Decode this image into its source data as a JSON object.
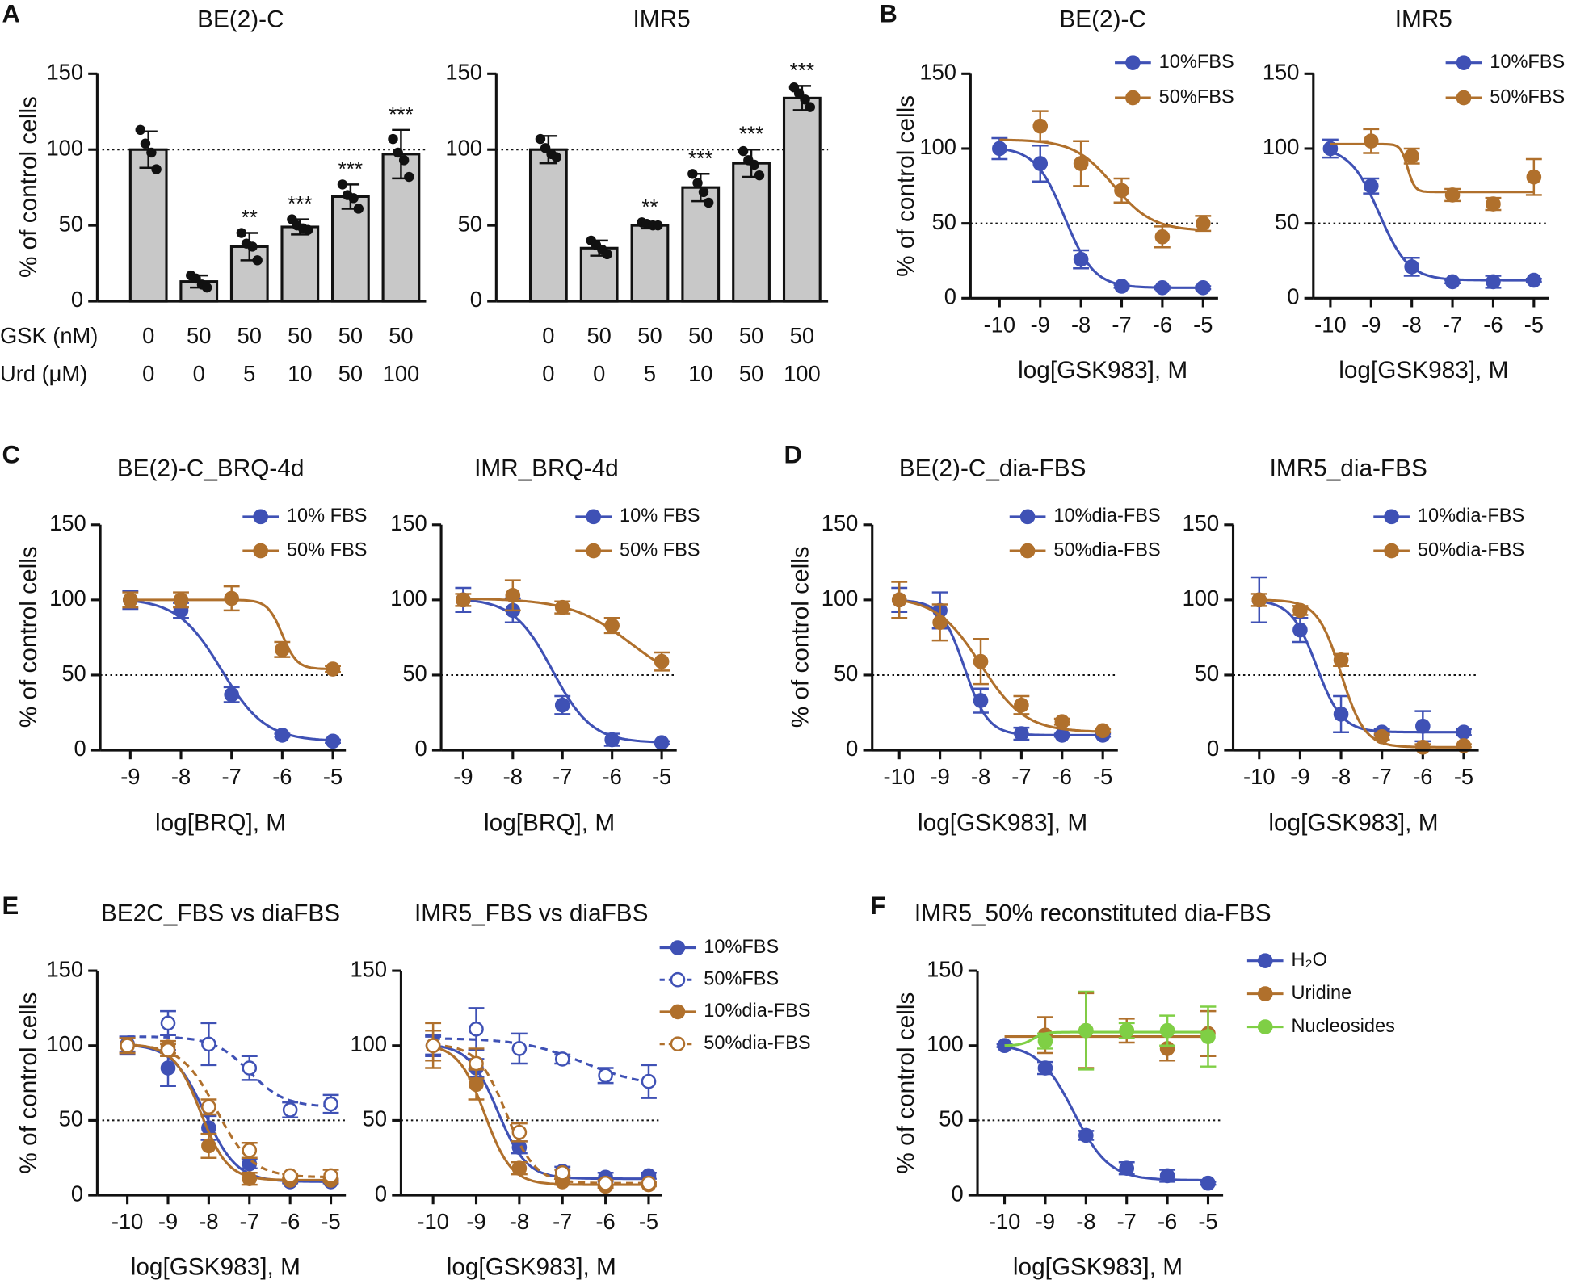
{
  "chart_data": [
    {
      "type": "bar",
      "panel": "A",
      "title": "BE(2)-C",
      "ylabel": "% of control cells",
      "ylim": [
        0,
        150
      ],
      "yticks": [
        0,
        50,
        100,
        150
      ],
      "hline": 100,
      "category_rows": [
        {
          "label": "GSK (nM)",
          "labels": [
            "0",
            "50",
            "50",
            "50",
            "50",
            "50"
          ]
        },
        {
          "label": "Urd (μM)",
          "labels": [
            "0",
            "0",
            "5",
            "10",
            "50",
            "100"
          ]
        }
      ],
      "values": [
        100,
        13,
        36,
        49,
        69,
        97
      ],
      "errors": [
        12,
        4,
        9,
        5,
        8,
        16
      ],
      "points": [
        [
          113,
          104,
          98,
          87
        ],
        [
          17,
          15,
          11,
          9
        ],
        [
          45,
          38,
          36,
          27
        ],
        [
          54,
          50,
          48,
          47
        ],
        [
          77,
          70,
          68,
          61
        ],
        [
          107,
          98,
          93,
          82
        ]
      ],
      "annotations": [
        null,
        null,
        "**",
        "***",
        "***",
        "***"
      ],
      "color": "#c8c8c8"
    },
    {
      "type": "bar",
      "title": "IMR5",
      "ylim": [
        0,
        150
      ],
      "yticks": [
        0,
        50,
        100,
        150
      ],
      "hline": 100,
      "category_rows": [
        {
          "labels": [
            "0",
            "50",
            "50",
            "50",
            "50",
            "50"
          ]
        },
        {
          "labels": [
            "0",
            "0",
            "5",
            "10",
            "50",
            "100"
          ]
        }
      ],
      "values": [
        100,
        35,
        50,
        75,
        91,
        134
      ],
      "errors": [
        9,
        5,
        2,
        9,
        9,
        8
      ],
      "points": [
        [
          107,
          101,
          97,
          95
        ],
        [
          40,
          37,
          34,
          31
        ],
        [
          52,
          51,
          50,
          50
        ],
        [
          84,
          78,
          72,
          65
        ],
        [
          99,
          93,
          90,
          83
        ],
        [
          141,
          137,
          133,
          128
        ]
      ],
      "annotations": [
        null,
        null,
        "**",
        "***",
        "***",
        "***"
      ],
      "color": "#c8c8c8"
    },
    {
      "type": "line",
      "panel": "B",
      "title": "BE(2)-C",
      "ylabel": "% of control cells",
      "xlabel": "log[GSK983], M",
      "xlim": [
        -10,
        -5
      ],
      "xticks": [
        -10,
        -9,
        -8,
        -7,
        -6,
        -5
      ],
      "ylim": [
        0,
        150
      ],
      "yticks": [
        0,
        50,
        100,
        150
      ],
      "hline": 50,
      "x": [
        -10,
        -9,
        -8,
        -7,
        -6,
        -5
      ],
      "series": [
        {
          "name": "10%FBS",
          "color": "#3f51b5",
          "values": [
            100,
            90,
            26,
            8,
            7,
            7
          ],
          "errors": [
            7,
            12,
            6,
            1,
            1,
            1
          ],
          "fit": {
            "bottom": 7,
            "top": 101,
            "logec50": -8.4,
            "hill": 1.2
          }
        },
        {
          "name": "50%FBS",
          "color": "#b0702c",
          "values": [
            null,
            115,
            90,
            72,
            41,
            50
          ],
          "errors": [
            null,
            10,
            15,
            8,
            7,
            5
          ],
          "fit": {
            "bottom": 45,
            "top": 106,
            "logec50": -7.2,
            "hill": 0.9
          }
        }
      ]
    },
    {
      "type": "line",
      "title": "IMR5",
      "xlabel": "log[GSK983], M",
      "xlim": [
        -10,
        -5
      ],
      "xticks": [
        -10,
        -9,
        -8,
        -7,
        -6,
        -5
      ],
      "ylim": [
        0,
        150
      ],
      "yticks": [
        0,
        50,
        100,
        150
      ],
      "hline": 50,
      "x": [
        -10,
        -9,
        -8,
        -7,
        -6,
        -5
      ],
      "series": [
        {
          "name": "10%FBS",
          "color": "#3f51b5",
          "values": [
            100,
            75,
            21,
            11,
            11,
            12
          ],
          "errors": [
            6,
            5,
            6,
            1,
            4,
            1
          ],
          "fit": {
            "bottom": 12,
            "top": 101,
            "logec50": -8.8,
            "hill": 1.2
          }
        },
        {
          "name": "50%FBS",
          "color": "#b0702c",
          "values": [
            null,
            105,
            95,
            69,
            63,
            81
          ],
          "errors": [
            null,
            8,
            5,
            4,
            4,
            12
          ],
          "fit": {
            "bottom": 71,
            "top": 103,
            "logec50": -8.1,
            "hill": 5
          }
        }
      ]
    },
    {
      "type": "line",
      "panel": "C",
      "title": "BE(2)-C_BRQ-4d",
      "ylabel": "% of control cells",
      "xlabel": "log[BRQ], M",
      "xlim": [
        -9,
        -5
      ],
      "xticks": [
        -9,
        -8,
        -7,
        -6,
        -5
      ],
      "ylim": [
        0,
        150
      ],
      "yticks": [
        0,
        50,
        100,
        150
      ],
      "hline": 50,
      "x": [
        -9,
        -8,
        -7,
        -6,
        -5
      ],
      "series": [
        {
          "name": "10% FBS",
          "color": "#3f51b5",
          "values": [
            100,
            93,
            37,
            10,
            6
          ],
          "errors": [
            6,
            5,
            5,
            1,
            1
          ],
          "fit": {
            "bottom": 6,
            "top": 101,
            "logec50": -7.2,
            "hill": 1
          }
        },
        {
          "name": "50% FBS",
          "color": "#b0702c",
          "values": [
            100,
            100,
            101,
            67,
            54
          ],
          "errors": [
            5,
            5,
            8,
            5,
            2
          ],
          "fit": {
            "bottom": 54,
            "top": 100,
            "logec50": -6,
            "hill": 3
          }
        }
      ]
    },
    {
      "type": "line",
      "title": "IMR_BRQ-4d",
      "xlabel": "log[BRQ], M",
      "xlim": [
        -9,
        -5
      ],
      "xticks": [
        -9,
        -8,
        -7,
        -6,
        -5
      ],
      "ylim": [
        0,
        150
      ],
      "yticks": [
        0,
        50,
        100,
        150
      ],
      "hline": 50,
      "x": [
        -9,
        -8,
        -7,
        -6,
        -5
      ],
      "series": [
        {
          "name": "10% FBS",
          "color": "#3f51b5",
          "values": [
            100,
            93,
            30,
            7,
            5
          ],
          "errors": [
            8,
            8,
            6,
            4,
            1
          ],
          "fit": {
            "bottom": 5,
            "top": 101,
            "logec50": -7.2,
            "hill": 1.1
          }
        },
        {
          "name": "50% FBS",
          "color": "#b0702c",
          "values": [
            100,
            103,
            95,
            83,
            59
          ],
          "errors": [
            4,
            10,
            4,
            5,
            6
          ],
          "fit": {
            "bottom": 40,
            "top": 101,
            "logec50": -5.6,
            "hill": 0.7
          }
        }
      ]
    },
    {
      "type": "line",
      "panel": "D",
      "title": "BE(2)-C_dia-FBS",
      "ylabel": "% of control cells",
      "xlabel": "log[GSK983], M",
      "xlim": [
        -10,
        -5
      ],
      "xticks": [
        -10,
        -9,
        -8,
        -7,
        -6,
        -5
      ],
      "ylim": [
        0,
        150
      ],
      "yticks": [
        0,
        50,
        100,
        150
      ],
      "hline": 50,
      "x": [
        -10,
        -9,
        -8,
        -7,
        -6,
        -5
      ],
      "series": [
        {
          "name": "10%dia-FBS",
          "color": "#3f51b5",
          "values": [
            100,
            93,
            33,
            11,
            10,
            10
          ],
          "errors": [
            8,
            12,
            8,
            4,
            1,
            1
          ],
          "fit": {
            "bottom": 10,
            "top": 100,
            "logec50": -8.4,
            "hill": 1.5
          }
        },
        {
          "name": "50%dia-FBS",
          "color": "#b0702c",
          "values": [
            100,
            85,
            59,
            30,
            19,
            13
          ],
          "errors": [
            12,
            12,
            15,
            6,
            2,
            1
          ],
          "fit": {
            "bottom": 12,
            "top": 102,
            "logec50": -8,
            "hill": 0.8
          }
        }
      ]
    },
    {
      "type": "line",
      "title": "IMR5_dia-FBS",
      "xlabel": "log[GSK983], M",
      "xlim": [
        -10,
        -5
      ],
      "xticks": [
        -10,
        -9,
        -8,
        -7,
        -6,
        -5
      ],
      "ylim": [
        0,
        150
      ],
      "yticks": [
        0,
        50,
        100,
        150
      ],
      "hline": 50,
      "x": [
        -10,
        -9,
        -8,
        -7,
        -6,
        -5
      ],
      "series": [
        {
          "name": "10%dia-FBS",
          "color": "#3f51b5",
          "values": [
            100,
            80,
            24,
            12,
            16,
            12
          ],
          "errors": [
            15,
            8,
            12,
            2,
            10,
            2
          ],
          "fit": {
            "bottom": 12,
            "top": 100,
            "logec50": -8.6,
            "hill": 1.4
          }
        },
        {
          "name": "50%dia-FBS",
          "color": "#b0702c",
          "values": [
            100,
            93,
            60,
            9,
            2,
            3
          ],
          "errors": [
            4,
            3,
            4,
            2,
            2,
            1
          ],
          "fit": {
            "bottom": 2,
            "top": 100,
            "logec50": -8,
            "hill": 1.5
          }
        }
      ]
    },
    {
      "type": "line",
      "panel": "E",
      "title": "BE2C_FBS vs diaFBS",
      "ylabel": "% of control cells",
      "xlabel": "log[GSK983], M",
      "xlim": [
        -10,
        -5
      ],
      "xticks": [
        -10,
        -9,
        -8,
        -7,
        -6,
        -5
      ],
      "ylim": [
        0,
        150
      ],
      "yticks": [
        0,
        50,
        100,
        150
      ],
      "hline": 50,
      "x": [
        -10,
        -9,
        -8,
        -7,
        -6,
        -5
      ],
      "series": [
        {
          "color": "#3f51b5",
          "values": [
            100,
            85,
            45,
            21,
            9,
            9
          ],
          "errors": [
            6,
            12,
            8,
            3,
            1,
            1
          ],
          "fit": {
            "bottom": 9,
            "top": 101,
            "logec50": -8.1,
            "hill": 1.1
          }
        },
        {
          "color": "#3f51b5",
          "open": true,
          "dashed": true,
          "values": [
            101,
            115,
            101,
            85,
            57,
            61
          ],
          "errors": [
            5,
            8,
            14,
            8,
            5,
            6
          ],
          "fit": {
            "bottom": 59,
            "top": 106,
            "logec50": -7,
            "hill": 1
          }
        },
        {
          "color": "#b0702c",
          "values": [
            100,
            99,
            33,
            11,
            10,
            10
          ],
          "errors": [
            5,
            4,
            8,
            4,
            1,
            1
          ],
          "fit": {
            "bottom": 10,
            "top": 101,
            "logec50": -8.2,
            "hill": 1.3
          }
        },
        {
          "color": "#b0702c",
          "open": true,
          "dashed": true,
          "values": [
            100,
            97,
            59,
            30,
            13,
            13
          ],
          "errors": [
            5,
            4,
            5,
            5,
            1,
            4
          ],
          "fit": {
            "bottom": 12,
            "top": 101,
            "logec50": -7.8,
            "hill": 1
          }
        }
      ]
    },
    {
      "type": "line",
      "title": "IMR5_FBS vs diaFBS",
      "xlabel": "log[GSK983], M",
      "xlim": [
        -10,
        -5
      ],
      "xticks": [
        -10,
        -9,
        -8,
        -7,
        -6,
        -5
      ],
      "ylim": [
        0,
        150
      ],
      "yticks": [
        0,
        50,
        100,
        150
      ],
      "hline": 50,
      "x": [
        -10,
        -9,
        -8,
        -7,
        -6,
        -5
      ],
      "series": [
        {
          "name": "10%FBS",
          "color": "#3f51b5",
          "values": [
            100,
            85,
            32,
            16,
            12,
            13
          ],
          "errors": [
            7,
            6,
            4,
            3,
            3,
            2
          ],
          "fit": {
            "bottom": 11,
            "top": 101,
            "logec50": -8.5,
            "hill": 1.3
          }
        },
        {
          "name": "50%FBS",
          "color": "#3f51b5",
          "open": true,
          "dashed": true,
          "values": [
            100,
            111,
            98,
            91,
            80,
            76
          ],
          "errors": [
            6,
            14,
            10,
            3,
            5,
            11
          ],
          "fit": {
            "bottom": 72,
            "top": 105,
            "logec50": -6.5,
            "hill": 0.6
          }
        },
        {
          "name": "10%dia-FBS",
          "color": "#b0702c",
          "values": [
            100,
            74,
            18,
            9,
            6,
            7
          ],
          "errors": [
            15,
            10,
            4,
            2,
            1,
            1
          ],
          "fit": {
            "bottom": 7,
            "top": 101,
            "logec50": -8.8,
            "hill": 1.4
          }
        },
        {
          "name": "50%dia-FBS",
          "color": "#b0702c",
          "open": true,
          "dashed": true,
          "values": [
            100,
            88,
            42,
            15,
            8,
            8
          ],
          "errors": [
            10,
            10,
            6,
            2,
            2,
            1
          ],
          "fit": {
            "bottom": 8,
            "top": 101,
            "logec50": -8.3,
            "hill": 1.3
          }
        }
      ]
    },
    {
      "type": "line",
      "panel": "F",
      "title": "IMR5_50% reconstituted dia-FBS",
      "ylabel": "% of control cells",
      "xlabel": "log[GSK983], M",
      "xlim": [
        -10,
        -5
      ],
      "xticks": [
        -10,
        -9,
        -8,
        -7,
        -6,
        -5
      ],
      "ylim": [
        0,
        150
      ],
      "yticks": [
        0,
        50,
        100,
        150
      ],
      "hline": 50,
      "x": [
        -10,
        -9,
        -8,
        -7,
        -6,
        -5
      ],
      "series": [
        {
          "name": "H₂O",
          "color": "#3f51b5",
          "values": [
            100,
            85,
            40,
            18,
            13,
            8
          ],
          "errors": [
            1,
            4,
            3,
            4,
            4,
            1
          ],
          "fit": {
            "bottom": 10,
            "top": 101,
            "logec50": -8.3,
            "hill": 1
          }
        },
        {
          "name": "Uridine",
          "color": "#b0702c",
          "values": [
            null,
            107,
            110,
            110,
            98,
            108
          ],
          "errors": [
            null,
            12,
            25,
            8,
            8,
            15
          ],
          "fit": {
            "bottom": 106,
            "top": 106,
            "logec50": -9,
            "hill": 1
          }
        },
        {
          "name": "Nucleosides",
          "color": "#7fcf45",
          "values": [
            null,
            103,
            110,
            110,
            110,
            106
          ],
          "errors": [
            null,
            5,
            26,
            5,
            10,
            20
          ],
          "fit": {
            "bottom": 109,
            "top": 100,
            "logec50": -9.3,
            "hill": 3
          }
        }
      ]
    }
  ]
}
